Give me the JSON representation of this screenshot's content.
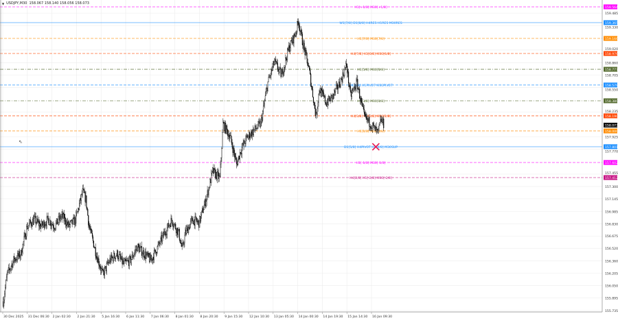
{
  "header": {
    "symbol": "USDJPY,M30",
    "ohlc": "158.067 158.140 158.056 158.073"
  },
  "chart_data": {
    "type": "candlestick",
    "title": "",
    "timeframe": "M30",
    "ylim": [
      155.7,
      159.62
    ],
    "grid": true,
    "current_price": 158.073,
    "y_ticks": [
      "159.485",
      "159.330",
      "159.020",
      "158.860",
      "158.705",
      "158.550",
      "158.235",
      "157.925",
      "157.770",
      "157.455",
      "157.300",
      "157.145",
      "156.985",
      "156.830",
      "156.675",
      "156.520",
      "156.360",
      "156.205",
      "156.050",
      "155.895",
      "155.735"
    ],
    "x_ticks": [
      "30 Dec 2025",
      "31 Dec 06:30",
      "2 Jan 02:30",
      "2 Jan 21:30",
      "5 Jan 16:30",
      "6 Jan 11:30",
      "7 Jan 06:30",
      "8 Jan 01:30",
      "8 Jan 20:30",
      "9 Jan 15:30",
      "12 Jan 10:30",
      "13 Jan 05:30",
      "14 Jan 00:30",
      "14 Jan 19:30",
      "15 Jan 14:30",
      "16 Jan 09:30"
    ],
    "price_path": [
      {
        "bar": 5,
        "price": 155.85
      },
      {
        "bar": 11,
        "price": 156.19
      },
      {
        "bar": 21,
        "price": 156.37
      },
      {
        "bar": 32,
        "price": 156.45
      },
      {
        "bar": 42,
        "price": 156.8
      },
      {
        "bar": 53,
        "price": 156.88
      },
      {
        "bar": 63,
        "price": 156.8
      },
      {
        "bar": 74,
        "price": 156.88
      },
      {
        "bar": 84,
        "price": 156.8
      },
      {
        "bar": 95,
        "price": 156.93
      },
      {
        "bar": 106,
        "price": 156.8
      },
      {
        "bar": 116,
        "price": 156.88
      },
      {
        "bar": 127,
        "price": 157.23
      },
      {
        "bar": 132,
        "price": 157.14
      },
      {
        "bar": 137,
        "price": 156.8
      },
      {
        "bar": 148,
        "price": 156.45
      },
      {
        "bar": 158,
        "price": 156.19
      },
      {
        "bar": 169,
        "price": 156.37
      },
      {
        "bar": 180,
        "price": 156.45
      },
      {
        "bar": 190,
        "price": 156.32
      },
      {
        "bar": 201,
        "price": 156.37
      },
      {
        "bar": 211,
        "price": 156.54
      },
      {
        "bar": 222,
        "price": 156.45
      },
      {
        "bar": 232,
        "price": 156.37
      },
      {
        "bar": 243,
        "price": 156.54
      },
      {
        "bar": 253,
        "price": 156.71
      },
      {
        "bar": 264,
        "price": 156.88
      },
      {
        "bar": 275,
        "price": 156.71
      },
      {
        "bar": 280,
        "price": 156.5
      },
      {
        "bar": 285,
        "price": 156.71
      },
      {
        "bar": 296,
        "price": 156.88
      },
      {
        "bar": 306,
        "price": 156.84
      },
      {
        "bar": 317,
        "price": 157.14
      },
      {
        "bar": 327,
        "price": 157.49
      },
      {
        "bar": 338,
        "price": 157.4
      },
      {
        "bar": 343,
        "price": 158.09
      },
      {
        "bar": 354,
        "price": 157.92
      },
      {
        "bar": 364,
        "price": 157.58
      },
      {
        "bar": 370,
        "price": 157.75
      },
      {
        "bar": 380,
        "price": 157.92
      },
      {
        "bar": 391,
        "price": 158.01
      },
      {
        "bar": 401,
        "price": 158.09
      },
      {
        "bar": 412,
        "price": 158.61
      },
      {
        "bar": 422,
        "price": 158.87
      },
      {
        "bar": 433,
        "price": 158.7
      },
      {
        "bar": 444,
        "price": 159.04
      },
      {
        "bar": 454,
        "price": 159.22
      },
      {
        "bar": 459,
        "price": 159.39
      },
      {
        "bar": 465,
        "price": 159.13
      },
      {
        "bar": 475,
        "price": 158.79
      },
      {
        "bar": 486,
        "price": 158.18
      },
      {
        "bar": 491,
        "price": 158.53
      },
      {
        "bar": 502,
        "price": 158.35
      },
      {
        "bar": 512,
        "price": 158.44
      },
      {
        "bar": 523,
        "price": 158.61
      },
      {
        "bar": 533,
        "price": 158.83
      },
      {
        "bar": 539,
        "price": 158.44
      },
      {
        "bar": 549,
        "price": 158.61
      },
      {
        "bar": 560,
        "price": 158.18
      },
      {
        "bar": 570,
        "price": 158.09
      },
      {
        "bar": 581,
        "price": 157.97
      },
      {
        "bar": 586,
        "price": 158.14
      },
      {
        "bar": 591,
        "price": 158.07
      }
    ],
    "levels": [
      {
        "label": "H1[+1/8] M30[+1/8]",
        "price": 159.564,
        "color": "#ff00ff",
        "style": "dash"
      },
      {
        "label": "W1[7/8] D1[8/8] H4RES H1RES M30RES",
        "price": 159.365,
        "color": "#1e90ff",
        "style": "solid"
      },
      {
        "label": "H1[7/8] M30[7/8]",
        "price": 159.166,
        "color": "#ff8c00",
        "style": "dash"
      },
      {
        "label": "H4[7/8] H1[6/8] M30[6/8]",
        "price": 158.976,
        "color": "#ff4500",
        "style": "dash"
      },
      {
        "label": "H1[5/8] M30[5/8]",
        "price": 158.777,
        "color": "#556b2f",
        "style": "dashdot"
      },
      {
        "label": "H4[4/8] H1PIVOT M30PIVOT",
        "price": 158.579,
        "color": "#1e90ff",
        "style": "dash"
      },
      {
        "label": "H1[3/8] M30[3/8]",
        "price": 158.38,
        "color": "#556b2f",
        "style": "dashdot"
      },
      {
        "label": "H4[3/8] H1[2/8] M30[2/8]",
        "price": 158.19,
        "color": "#ff4500",
        "style": "dash"
      },
      {
        "label": "H1[1/8] M30[1/8]",
        "price": 158.0,
        "color": "#ff8c00",
        "style": "dash"
      },
      {
        "label": "D1[5/8] H4PIVOT H1[0/8] M30SUP",
        "price": 157.801,
        "color": "#1e90ff",
        "style": "solid"
      },
      {
        "label": "H1[-1/8] M30[-1/8]",
        "price": 157.602,
        "color": "#ff00ff",
        "style": "dash"
      },
      {
        "label": "H4[2/8] H1[-2/8] M30[-2/8]",
        "price": 157.412,
        "color": "#c71585",
        "style": "dash"
      }
    ],
    "marker": {
      "type": "cross",
      "price": 157.8,
      "bar": 578,
      "color": "#e8174f"
    }
  }
}
